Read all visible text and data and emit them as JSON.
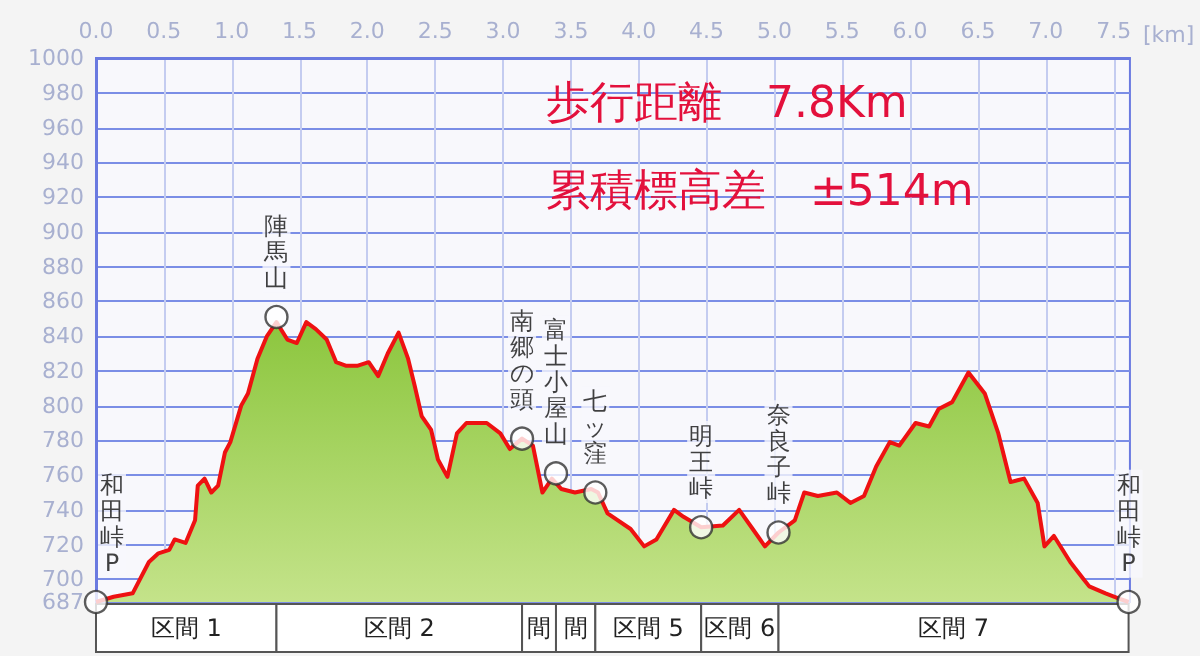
{
  "chart_data": {
    "type": "area",
    "title": "歩行距離　7.8Km",
    "subtitle": "累積標高差　±514m",
    "xlabel": "[km]",
    "x": [
      0,
      0.13,
      0.27,
      0.39,
      0.46,
      0.54,
      0.58,
      0.66,
      0.73,
      0.75,
      0.8,
      0.85,
      0.9,
      0.95,
      0.99,
      1.07,
      1.12,
      1.19,
      1.26,
      1.33,
      1.41,
      1.48,
      1.55,
      1.62,
      1.7,
      1.77,
      1.84,
      1.93,
      2.01,
      2.08,
      2.15,
      2.23,
      2.3,
      2.35,
      2.4,
      2.47,
      2.52,
      2.59,
      2.66,
      2.73,
      2.88,
      2.98,
      3.05,
      3.14,
      3.22,
      3.29,
      3.36,
      3.43,
      3.53,
      3.65,
      3.7,
      3.77,
      3.94,
      4.04,
      4.13,
      4.26,
      4.33,
      4.46,
      4.62,
      4.74,
      4.84,
      4.93,
      5.03,
      5.15,
      5.22,
      5.32,
      5.46,
      5.56,
      5.66,
      5.75,
      5.85,
      5.92,
      6.04,
      6.14,
      6.21,
      6.31,
      6.43,
      6.55,
      6.65,
      6.74,
      6.84,
      6.94,
      6.99,
      7.06,
      7.18,
      7.28,
      7.32,
      7.44,
      7.54,
      7.61
    ],
    "series": [
      {
        "color": "#ee1111",
        "values": [
          687,
          690,
          692,
          710,
          715,
          717,
          723,
          721,
          734,
          754,
          758,
          750,
          754,
          773,
          779,
          800,
          807,
          827,
          840,
          848,
          838,
          836,
          848,
          844,
          838,
          825,
          823,
          823,
          825,
          817,
          830,
          842,
          827,
          811,
          794,
          786,
          769,
          759,
          784,
          790,
          790,
          784,
          775,
          781,
          777,
          750,
          758,
          752,
          750,
          752,
          750,
          738,
          729,
          719,
          723,
          740,
          736,
          730,
          731,
          740,
          729,
          719,
          727,
          734,
          750,
          748,
          750,
          744,
          748,
          765,
          779,
          777,
          790,
          788,
          798,
          802,
          819,
          807,
          784,
          756,
          758,
          744,
          719,
          725,
          710,
          700,
          696,
          692,
          689,
          687
        ]
      }
    ],
    "xlim": [
      0,
      7.62
    ],
    "xticks": [
      {
        "value": 0,
        "label": "0.0"
      },
      0.5,
      {
        "value": 1,
        "label": "1.0"
      },
      1.5,
      {
        "value": 2,
        "label": "2.0"
      },
      2.5,
      {
        "value": 3,
        "label": "3.0"
      },
      3.5,
      {
        "value": 4,
        "label": "4.0"
      },
      4.5,
      {
        "value": 5,
        "label": "5.0"
      },
      5.5,
      {
        "value": 6,
        "label": "6.0"
      },
      6.5,
      {
        "value": 7,
        "label": "7.0"
      },
      7.5
    ],
    "ylim": [
      687,
      1000
    ],
    "yticks": [
      687,
      700,
      720,
      740,
      760,
      780,
      800,
      820,
      840,
      860,
      880,
      900,
      920,
      940,
      960,
      980,
      1000
    ],
    "grid": true,
    "annotations": [
      {
        "text": "和田峠P",
        "x": 0,
        "y": 687
      },
      {
        "text": "陣馬山",
        "x": 1.33,
        "y": 851
      },
      {
        "text": "南郷の頭",
        "x": 3.14,
        "y": 781
      },
      {
        "text": "富士小屋山",
        "x": 3.39,
        "y": 761
      },
      {
        "text": "七ッ窪",
        "x": 3.68,
        "y": 750
      },
      {
        "text": "明王峠",
        "x": 4.46,
        "y": 730
      },
      {
        "text": "奈良子峠",
        "x": 5.03,
        "y": 727
      },
      {
        "text": "和田峠P",
        "x": 7.61,
        "y": 687
      },
      "区間 1",
      "区間 2",
      "間",
      "間",
      "区間 5",
      "区間 6",
      "区間 7"
    ]
  }
}
